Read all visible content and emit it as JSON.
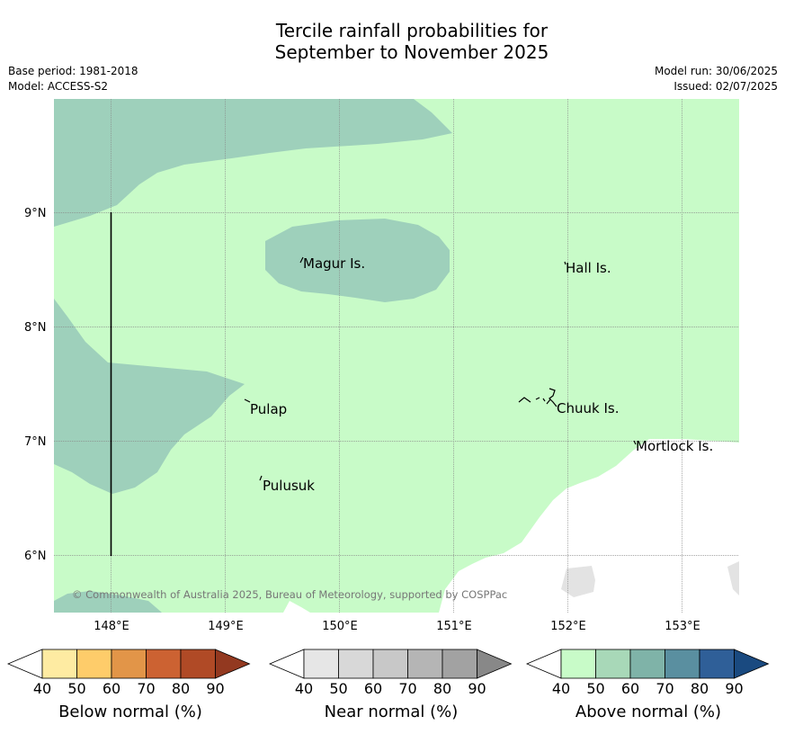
{
  "title": {
    "line1": "Tercile rainfall probabilities for",
    "line2": "September to November 2025"
  },
  "meta": {
    "base_period": "Base period: 1981-2018",
    "model": "Model: ACCESS-S2",
    "model_run": "Model run: 30/06/2025",
    "issued": "Issued: 02/07/2025"
  },
  "map": {
    "lat_labels": [
      "9°N",
      "8°N",
      "7°N",
      "6°N"
    ],
    "lon_labels": [
      "148°E",
      "149°E",
      "150°E",
      "151°E",
      "152°E",
      "153°E"
    ],
    "places": {
      "magur": "Magur Is.",
      "hall": "Hall Is.",
      "pulap": "Pulap",
      "chuuk": "Chuuk Is.",
      "mortlock": "Mortlock Is.",
      "pulusuk": "Pulusuk"
    },
    "copyright": "© Commonwealth of Australia 2025, Bureau of Meteorology, supported by COSPPac",
    "colors": {
      "above_50": "#c8fbc8",
      "above_60": "#9ed0bb",
      "near_50": "#e3e3e3"
    }
  },
  "legends": [
    {
      "label": "Below normal (%)",
      "ticks": [
        "40",
        "50",
        "60",
        "70",
        "80",
        "90"
      ],
      "colors": [
        "#ffffff",
        "#feeba2",
        "#fecc6a",
        "#e29548",
        "#cc6232",
        "#b04a26",
        "#933920"
      ]
    },
    {
      "label": "Near normal (%)",
      "ticks": [
        "40",
        "50",
        "60",
        "70",
        "80",
        "90"
      ],
      "colors": [
        "#ffffff",
        "#e6e6e6",
        "#d8d8d8",
        "#c8c8c8",
        "#b5b5b5",
        "#a2a2a2",
        "#888888"
      ]
    },
    {
      "label": "Above normal (%)",
      "ticks": [
        "40",
        "50",
        "60",
        "70",
        "80",
        "90"
      ],
      "colors": [
        "#ffffff",
        "#c8fbc8",
        "#a8d8b8",
        "#7fb3a8",
        "#5a8fa0",
        "#2f5f98",
        "#1a4a80"
      ]
    }
  ]
}
